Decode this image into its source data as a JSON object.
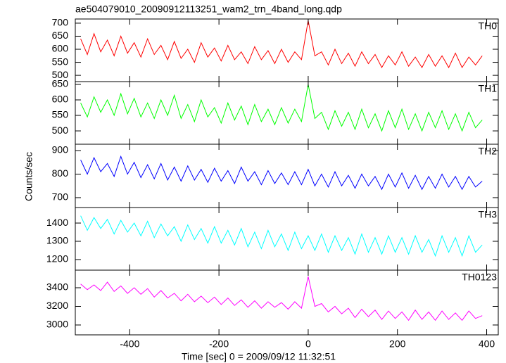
{
  "title": "ae504079010_20090912113251_wam2_trn_4band_long.qdp",
  "ylabel": "Counts/sec",
  "chart_data": [
    {
      "type": "line",
      "label": "TH0",
      "color": "#ff0000",
      "x": [
        -510,
        -495,
        -480,
        -465,
        -450,
        -435,
        -420,
        -405,
        -390,
        -375,
        -360,
        -345,
        -330,
        -315,
        -300,
        -285,
        -270,
        -255,
        -240,
        -225,
        -210,
        -195,
        -180,
        -165,
        -150,
        -135,
        -120,
        -105,
        -90,
        -75,
        -60,
        -45,
        -30,
        -15,
        0,
        15,
        30,
        45,
        60,
        75,
        90,
        105,
        120,
        135,
        150,
        165,
        180,
        195,
        210,
        225,
        240,
        255,
        270,
        285,
        300,
        315,
        330,
        345,
        360,
        375,
        390
      ],
      "values": [
        640,
        580,
        660,
        590,
        635,
        575,
        650,
        585,
        625,
        570,
        640,
        580,
        615,
        560,
        630,
        565,
        600,
        550,
        625,
        570,
        605,
        555,
        615,
        560,
        590,
        545,
        610,
        560,
        595,
        545,
        600,
        550,
        590,
        560,
        710,
        575,
        590,
        540,
        600,
        545,
        585,
        535,
        590,
        545,
        580,
        530,
        575,
        540,
        590,
        535,
        570,
        530,
        580,
        535,
        575,
        530,
        585,
        530,
        570,
        540,
        575
      ],
      "xlim": [
        -522,
        426
      ],
      "xticks": [
        -400,
        -200,
        0,
        200,
        400
      ],
      "ylim": [
        476,
        716
      ],
      "yticks": [
        500,
        550,
        600,
        650,
        700
      ]
    },
    {
      "type": "line",
      "label": "TH1",
      "color": "#00ff00",
      "x": [
        -510,
        -495,
        -480,
        -465,
        -450,
        -435,
        -420,
        -405,
        -390,
        -375,
        -360,
        -345,
        -330,
        -315,
        -300,
        -285,
        -270,
        -255,
        -240,
        -225,
        -210,
        -195,
        -180,
        -165,
        -150,
        -135,
        -120,
        -105,
        -90,
        -75,
        -60,
        -45,
        -30,
        -15,
        0,
        15,
        30,
        45,
        60,
        75,
        90,
        105,
        120,
        135,
        150,
        165,
        180,
        195,
        210,
        225,
        240,
        255,
        270,
        285,
        300,
        315,
        330,
        345,
        360,
        375,
        390
      ],
      "values": [
        590,
        545,
        610,
        560,
        600,
        550,
        620,
        555,
        605,
        545,
        590,
        540,
        600,
        550,
        615,
        540,
        585,
        530,
        600,
        545,
        575,
        525,
        590,
        535,
        580,
        520,
        585,
        530,
        570,
        520,
        575,
        525,
        570,
        530,
        650,
        540,
        560,
        505,
        565,
        515,
        560,
        505,
        570,
        510,
        555,
        500,
        565,
        510,
        570,
        505,
        555,
        500,
        560,
        510,
        565,
        505,
        555,
        500,
        560,
        510,
        535
      ],
      "xlim": [
        -522,
        426
      ],
      "xticks": [
        -400,
        -200,
        0,
        200,
        400
      ],
      "ylim": [
        457,
        659
      ],
      "yticks": [
        500,
        550,
        600,
        650
      ]
    },
    {
      "type": "line",
      "label": "TH2",
      "color": "#0000ff",
      "x": [
        -510,
        -495,
        -480,
        -465,
        -450,
        -435,
        -420,
        -405,
        -390,
        -375,
        -360,
        -345,
        -330,
        -315,
        -300,
        -285,
        -270,
        -255,
        -240,
        -225,
        -210,
        -195,
        -180,
        -165,
        -150,
        -135,
        -120,
        -105,
        -90,
        -75,
        -60,
        -45,
        -30,
        -15,
        0,
        15,
        30,
        45,
        60,
        75,
        90,
        105,
        120,
        135,
        150,
        165,
        180,
        195,
        210,
        225,
        240,
        255,
        270,
        285,
        300,
        315,
        330,
        345,
        360,
        375,
        390
      ],
      "values": [
        860,
        800,
        870,
        810,
        845,
        790,
        875,
        800,
        850,
        785,
        840,
        780,
        845,
        775,
        830,
        770,
        835,
        775,
        820,
        765,
        825,
        770,
        815,
        760,
        830,
        770,
        810,
        755,
        815,
        760,
        805,
        755,
        810,
        755,
        820,
        750,
        800,
        745,
        810,
        750,
        795,
        740,
        800,
        750,
        790,
        735,
        800,
        745,
        805,
        740,
        795,
        735,
        790,
        740,
        800,
        745,
        790,
        735,
        790,
        745,
        770
      ],
      "xlim": [
        -522,
        426
      ],
      "xticks": [
        -400,
        -200,
        0,
        200,
        400
      ],
      "ylim": [
        658,
        927
      ],
      "yticks": [
        700,
        800,
        900
      ]
    },
    {
      "type": "line",
      "label": "TH3",
      "color": "#00ffff",
      "x": [
        -510,
        -495,
        -480,
        -465,
        -450,
        -435,
        -420,
        -405,
        -390,
        -375,
        -360,
        -345,
        -330,
        -315,
        -300,
        -285,
        -270,
        -255,
        -240,
        -225,
        -210,
        -195,
        -180,
        -165,
        -150,
        -135,
        -120,
        -105,
        -90,
        -75,
        -60,
        -45,
        -30,
        -15,
        0,
        15,
        30,
        45,
        60,
        75,
        90,
        105,
        120,
        135,
        150,
        165,
        180,
        195,
        210,
        225,
        240,
        255,
        270,
        285,
        300,
        315,
        330,
        345,
        360,
        375,
        390
      ],
      "values": [
        1440,
        1360,
        1430,
        1370,
        1420,
        1340,
        1415,
        1350,
        1400,
        1330,
        1410,
        1320,
        1395,
        1330,
        1380,
        1300,
        1390,
        1310,
        1370,
        1290,
        1380,
        1290,
        1360,
        1280,
        1370,
        1270,
        1350,
        1260,
        1360,
        1270,
        1340,
        1250,
        1350,
        1260,
        1330,
        1250,
        1340,
        1240,
        1330,
        1250,
        1320,
        1230,
        1340,
        1240,
        1320,
        1230,
        1330,
        1240,
        1320,
        1230,
        1330,
        1240,
        1310,
        1220,
        1330,
        1240,
        1320,
        1220,
        1330,
        1240,
        1280
      ],
      "xlim": [
        -522,
        426
      ],
      "xticks": [
        -400,
        -200,
        0,
        200,
        400
      ],
      "ylim": [
        1142,
        1485
      ],
      "yticks": [
        1200,
        1300,
        1400
      ]
    },
    {
      "type": "line",
      "label": "TH0123",
      "color": "#ff00ff",
      "x": [
        -510,
        -495,
        -480,
        -465,
        -450,
        -435,
        -420,
        -405,
        -390,
        -375,
        -360,
        -345,
        -330,
        -315,
        -300,
        -285,
        -270,
        -255,
        -240,
        -225,
        -210,
        -195,
        -180,
        -165,
        -150,
        -135,
        -120,
        -105,
        -90,
        -75,
        -60,
        -45,
        -30,
        -15,
        0,
        15,
        30,
        45,
        60,
        75,
        90,
        105,
        120,
        135,
        150,
        165,
        180,
        195,
        210,
        225,
        240,
        255,
        270,
        285,
        300,
        315,
        330,
        345,
        360,
        375,
        390
      ],
      "values": [
        3440,
        3380,
        3430,
        3370,
        3460,
        3360,
        3420,
        3340,
        3400,
        3330,
        3390,
        3300,
        3370,
        3290,
        3340,
        3260,
        3330,
        3250,
        3310,
        3240,
        3300,
        3220,
        3290,
        3210,
        3270,
        3190,
        3260,
        3180,
        3250,
        3190,
        3240,
        3170,
        3250,
        3180,
        3520,
        3200,
        3230,
        3140,
        3200,
        3120,
        3180,
        3080,
        3170,
        3090,
        3160,
        3060,
        3150,
        3070,
        3140,
        3050,
        3160,
        3060,
        3140,
        3050,
        3150,
        3060,
        3130,
        3050,
        3150,
        3070,
        3100
      ],
      "xlim": [
        -522,
        426
      ],
      "xticks": [
        -400,
        -200,
        0,
        200,
        400
      ],
      "xlabel": "Time [sec] 0 = 2009/09/12 11:32:51",
      "ylim": [
        2894,
        3589
      ],
      "yticks": [
        3000,
        3200,
        3400
      ]
    }
  ]
}
